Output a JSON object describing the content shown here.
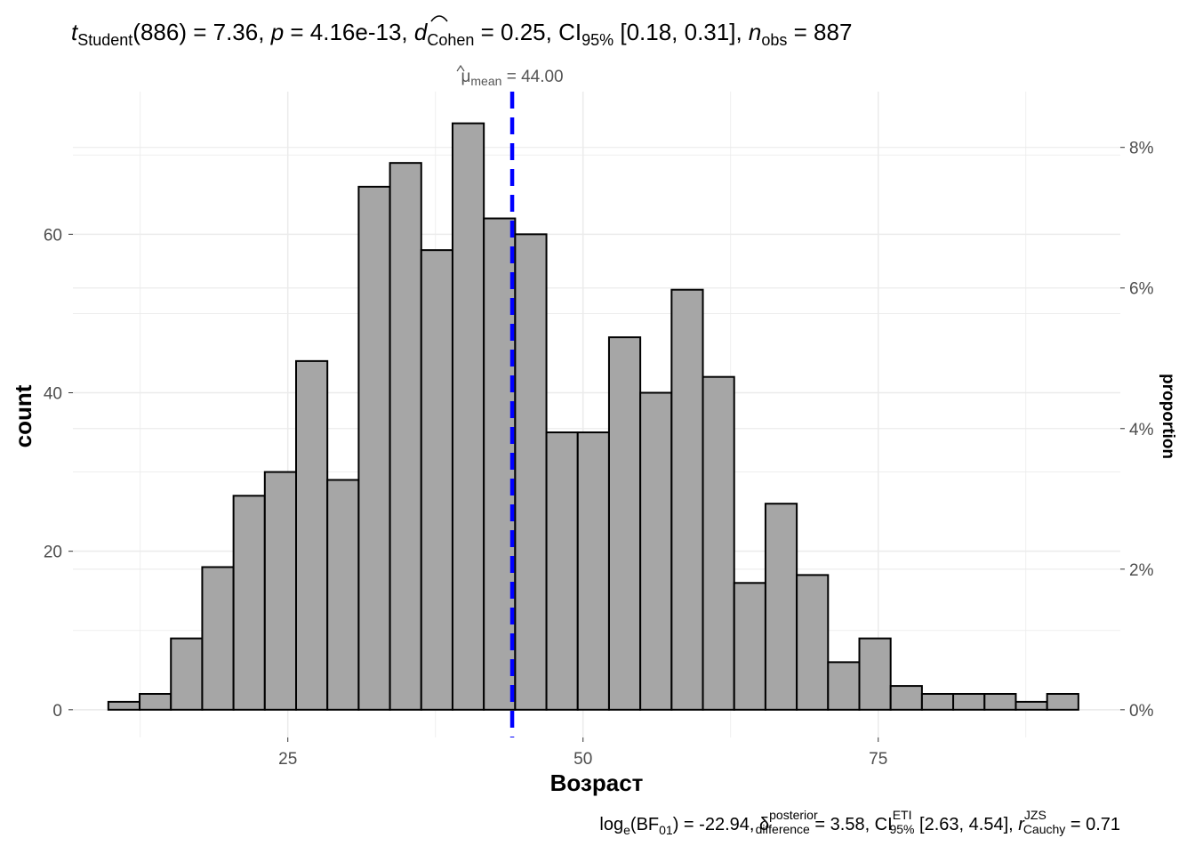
{
  "chart_data": {
    "type": "bar",
    "subtype": "histogram",
    "title": "t Student(886) = 7.36, p = 4.16e-13, d̂ Cohen = 0.25, CI95% [0.18, 0.31], n obs = 887",
    "title_parts": {
      "t_sym": "t",
      "t_sub": "Student",
      "t_rest": "(886) = 7.36, ",
      "p_sym": "p",
      "p_rest": " = 4.16e-13, ",
      "d_sym": "d",
      "d_sub": "Cohen",
      "d_rest": " = 0.25, CI",
      "ci_sub": "95%",
      "ci_rest": " [0.18, 0.31], ",
      "n_sym": "n",
      "n_sub": "obs",
      "n_rest": " = 887"
    },
    "caption": "loge(BF01) = -22.94, δ̂posterior difference = 3.58, CIETI 95% [2.63, 4.54], rJZS Cauchy = 0.71",
    "caption_parts": {
      "a": "log",
      "a_sub": "e",
      "b": "(BF",
      "b_sub": "01",
      "c": ") = -22.94, ",
      "delta": "δ",
      "delta_sup": "posterior",
      "delta_sub": "difference",
      "d": " = 3.58, CI",
      "ci_sup": "ETI",
      "ci_sub": "95%",
      "e": " [2.63, 4.54], ",
      "r": "r",
      "r_sup": "JZS",
      "r_sub": "Cauchy",
      "f": " = 0.71"
    },
    "xlabel": "Возраст",
    "ylabel": "count",
    "ylabel_secondary": "proportion",
    "xlim": [
      6.8,
      95.5
    ],
    "ylim": [
      -3.5,
      78
    ],
    "x_ticks": [
      25,
      50,
      75
    ],
    "x_minor": [
      12.5,
      37.5,
      62.5,
      87.5
    ],
    "y_ticks": [
      0,
      20,
      40,
      60
    ],
    "y_minor": [
      10,
      30,
      50,
      70
    ],
    "y2_ticks": [
      {
        "value": 0,
        "label": "0%"
      },
      {
        "value": 0.02,
        "label": "2%"
      },
      {
        "value": 0.04,
        "label": "4%"
      },
      {
        "value": 0.06,
        "label": "6%"
      },
      {
        "value": 0.08,
        "label": "8%"
      }
    ],
    "n_obs": 887,
    "grid": true,
    "bins": [
      {
        "x0": 9.8,
        "x1": 12.45,
        "count": 1
      },
      {
        "x0": 12.45,
        "x1": 15.1,
        "count": 2
      },
      {
        "x0": 15.1,
        "x1": 17.75,
        "count": 9
      },
      {
        "x0": 17.75,
        "x1": 20.4,
        "count": 18
      },
      {
        "x0": 20.4,
        "x1": 23.05,
        "count": 27
      },
      {
        "x0": 23.05,
        "x1": 25.7,
        "count": 30
      },
      {
        "x0": 25.7,
        "x1": 28.35,
        "count": 44
      },
      {
        "x0": 28.35,
        "x1": 31.0,
        "count": 29
      },
      {
        "x0": 31.0,
        "x1": 33.65,
        "count": 66
      },
      {
        "x0": 33.65,
        "x1": 36.3,
        "count": 69
      },
      {
        "x0": 36.3,
        "x1": 38.95,
        "count": 58
      },
      {
        "x0": 38.95,
        "x1": 41.6,
        "count": 74
      },
      {
        "x0": 41.6,
        "x1": 44.25,
        "count": 62
      },
      {
        "x0": 44.25,
        "x1": 46.9,
        "count": 60
      },
      {
        "x0": 46.9,
        "x1": 49.55,
        "count": 35
      },
      {
        "x0": 49.55,
        "x1": 52.2,
        "count": 35
      },
      {
        "x0": 52.2,
        "x1": 54.85,
        "count": 47
      },
      {
        "x0": 54.85,
        "x1": 57.5,
        "count": 40
      },
      {
        "x0": 57.5,
        "x1": 60.15,
        "count": 53
      },
      {
        "x0": 60.15,
        "x1": 62.8,
        "count": 42
      },
      {
        "x0": 62.8,
        "x1": 65.45,
        "count": 16
      },
      {
        "x0": 65.45,
        "x1": 68.1,
        "count": 26
      },
      {
        "x0": 68.1,
        "x1": 70.75,
        "count": 17
      },
      {
        "x0": 70.75,
        "x1": 73.4,
        "count": 6
      },
      {
        "x0": 73.4,
        "x1": 76.05,
        "count": 9
      },
      {
        "x0": 76.05,
        "x1": 78.7,
        "count": 3
      },
      {
        "x0": 78.7,
        "x1": 81.35,
        "count": 2
      },
      {
        "x0": 81.35,
        "x1": 84.0,
        "count": 2
      },
      {
        "x0": 84.0,
        "x1": 86.65,
        "count": 2
      },
      {
        "x0": 86.65,
        "x1": 89.3,
        "count": 1
      },
      {
        "x0": 89.3,
        "x1": 91.95,
        "count": 2
      }
    ],
    "mean": {
      "value": 44.0,
      "label_symbol": "μ",
      "label_sub": "mean",
      "label_value": " = 44.00",
      "color": "#0000ff"
    },
    "colors": {
      "bar_fill": "#a6a6a6",
      "bar_stroke": "#000000",
      "grid": "#ebebeb"
    }
  }
}
